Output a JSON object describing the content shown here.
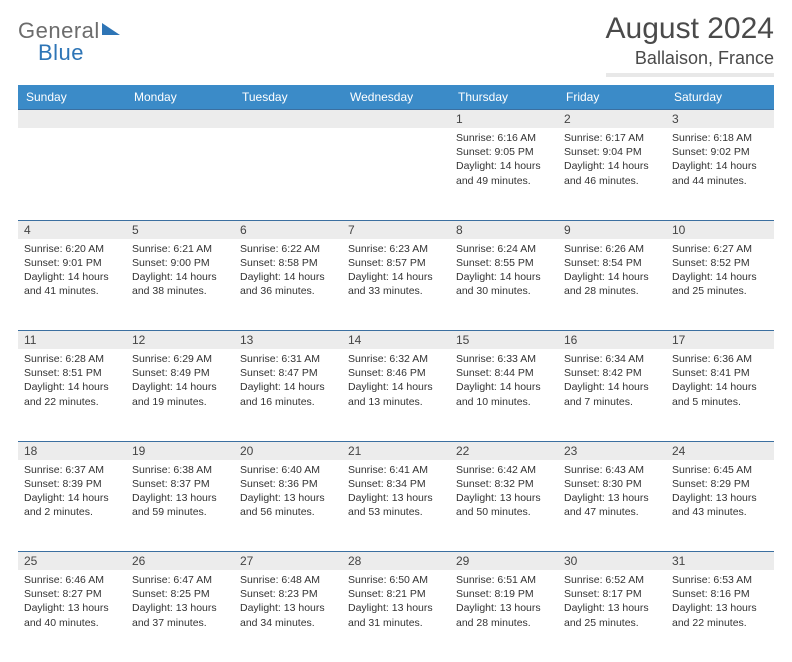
{
  "brand": {
    "general": "General",
    "blue": "Blue"
  },
  "title": "August 2024",
  "location": "Ballaison, France",
  "headerColor": "#3b8bc8",
  "dayHeaders": [
    "Sunday",
    "Monday",
    "Tuesday",
    "Wednesday",
    "Thursday",
    "Friday",
    "Saturday"
  ],
  "weeks": [
    [
      null,
      null,
      null,
      null,
      {
        "n": "1",
        "sr": "Sunrise: 6:16 AM",
        "ss": "Sunset: 9:05 PM",
        "dl": "Daylight: 14 hours and 49 minutes."
      },
      {
        "n": "2",
        "sr": "Sunrise: 6:17 AM",
        "ss": "Sunset: 9:04 PM",
        "dl": "Daylight: 14 hours and 46 minutes."
      },
      {
        "n": "3",
        "sr": "Sunrise: 6:18 AM",
        "ss": "Sunset: 9:02 PM",
        "dl": "Daylight: 14 hours and 44 minutes."
      }
    ],
    [
      {
        "n": "4",
        "sr": "Sunrise: 6:20 AM",
        "ss": "Sunset: 9:01 PM",
        "dl": "Daylight: 14 hours and 41 minutes."
      },
      {
        "n": "5",
        "sr": "Sunrise: 6:21 AM",
        "ss": "Sunset: 9:00 PM",
        "dl": "Daylight: 14 hours and 38 minutes."
      },
      {
        "n": "6",
        "sr": "Sunrise: 6:22 AM",
        "ss": "Sunset: 8:58 PM",
        "dl": "Daylight: 14 hours and 36 minutes."
      },
      {
        "n": "7",
        "sr": "Sunrise: 6:23 AM",
        "ss": "Sunset: 8:57 PM",
        "dl": "Daylight: 14 hours and 33 minutes."
      },
      {
        "n": "8",
        "sr": "Sunrise: 6:24 AM",
        "ss": "Sunset: 8:55 PM",
        "dl": "Daylight: 14 hours and 30 minutes."
      },
      {
        "n": "9",
        "sr": "Sunrise: 6:26 AM",
        "ss": "Sunset: 8:54 PM",
        "dl": "Daylight: 14 hours and 28 minutes."
      },
      {
        "n": "10",
        "sr": "Sunrise: 6:27 AM",
        "ss": "Sunset: 8:52 PM",
        "dl": "Daylight: 14 hours and 25 minutes."
      }
    ],
    [
      {
        "n": "11",
        "sr": "Sunrise: 6:28 AM",
        "ss": "Sunset: 8:51 PM",
        "dl": "Daylight: 14 hours and 22 minutes."
      },
      {
        "n": "12",
        "sr": "Sunrise: 6:29 AM",
        "ss": "Sunset: 8:49 PM",
        "dl": "Daylight: 14 hours and 19 minutes."
      },
      {
        "n": "13",
        "sr": "Sunrise: 6:31 AM",
        "ss": "Sunset: 8:47 PM",
        "dl": "Daylight: 14 hours and 16 minutes."
      },
      {
        "n": "14",
        "sr": "Sunrise: 6:32 AM",
        "ss": "Sunset: 8:46 PM",
        "dl": "Daylight: 14 hours and 13 minutes."
      },
      {
        "n": "15",
        "sr": "Sunrise: 6:33 AM",
        "ss": "Sunset: 8:44 PM",
        "dl": "Daylight: 14 hours and 10 minutes."
      },
      {
        "n": "16",
        "sr": "Sunrise: 6:34 AM",
        "ss": "Sunset: 8:42 PM",
        "dl": "Daylight: 14 hours and 7 minutes."
      },
      {
        "n": "17",
        "sr": "Sunrise: 6:36 AM",
        "ss": "Sunset: 8:41 PM",
        "dl": "Daylight: 14 hours and 5 minutes."
      }
    ],
    [
      {
        "n": "18",
        "sr": "Sunrise: 6:37 AM",
        "ss": "Sunset: 8:39 PM",
        "dl": "Daylight: 14 hours and 2 minutes."
      },
      {
        "n": "19",
        "sr": "Sunrise: 6:38 AM",
        "ss": "Sunset: 8:37 PM",
        "dl": "Daylight: 13 hours and 59 minutes."
      },
      {
        "n": "20",
        "sr": "Sunrise: 6:40 AM",
        "ss": "Sunset: 8:36 PM",
        "dl": "Daylight: 13 hours and 56 minutes."
      },
      {
        "n": "21",
        "sr": "Sunrise: 6:41 AM",
        "ss": "Sunset: 8:34 PM",
        "dl": "Daylight: 13 hours and 53 minutes."
      },
      {
        "n": "22",
        "sr": "Sunrise: 6:42 AM",
        "ss": "Sunset: 8:32 PM",
        "dl": "Daylight: 13 hours and 50 minutes."
      },
      {
        "n": "23",
        "sr": "Sunrise: 6:43 AM",
        "ss": "Sunset: 8:30 PM",
        "dl": "Daylight: 13 hours and 47 minutes."
      },
      {
        "n": "24",
        "sr": "Sunrise: 6:45 AM",
        "ss": "Sunset: 8:29 PM",
        "dl": "Daylight: 13 hours and 43 minutes."
      }
    ],
    [
      {
        "n": "25",
        "sr": "Sunrise: 6:46 AM",
        "ss": "Sunset: 8:27 PM",
        "dl": "Daylight: 13 hours and 40 minutes."
      },
      {
        "n": "26",
        "sr": "Sunrise: 6:47 AM",
        "ss": "Sunset: 8:25 PM",
        "dl": "Daylight: 13 hours and 37 minutes."
      },
      {
        "n": "27",
        "sr": "Sunrise: 6:48 AM",
        "ss": "Sunset: 8:23 PM",
        "dl": "Daylight: 13 hours and 34 minutes."
      },
      {
        "n": "28",
        "sr": "Sunrise: 6:50 AM",
        "ss": "Sunset: 8:21 PM",
        "dl": "Daylight: 13 hours and 31 minutes."
      },
      {
        "n": "29",
        "sr": "Sunrise: 6:51 AM",
        "ss": "Sunset: 8:19 PM",
        "dl": "Daylight: 13 hours and 28 minutes."
      },
      {
        "n": "30",
        "sr": "Sunrise: 6:52 AM",
        "ss": "Sunset: 8:17 PM",
        "dl": "Daylight: 13 hours and 25 minutes."
      },
      {
        "n": "31",
        "sr": "Sunrise: 6:53 AM",
        "ss": "Sunset: 8:16 PM",
        "dl": "Daylight: 13 hours and 22 minutes."
      }
    ]
  ]
}
